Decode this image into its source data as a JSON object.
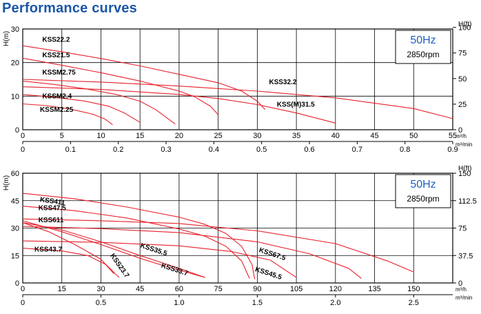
{
  "page": {
    "title": "Performance curves"
  },
  "colors": {
    "curve": "#e8202a",
    "frame": "#000000",
    "grid": "#000000",
    "hz_text": "#1f5fbf",
    "title": "#1a56a8"
  },
  "chart_data": [
    {
      "type": "line",
      "title": "Performance curves",
      "frequency_label": "50Hz",
      "speed_label": "2850rpm",
      "ylabel": "H(m)",
      "ylabel_right": "H(ft)",
      "xlabel_top_unit": [
        "m³/h",
        "m³/min"
      ],
      "grid": true,
      "xlim_m3h": [
        0,
        55
      ],
      "ylim_m": [
        0,
        30
      ],
      "x_ticks_m3h": [
        "0",
        "5",
        "10",
        "15",
        "20",
        "25",
        "30",
        "35",
        "40",
        "45",
        "50",
        "55"
      ],
      "x_ticks_m3min": [
        "0",
        "0.1",
        "0.2",
        "0.3",
        "0.4",
        "0.5",
        "0.6",
        "0.7",
        "0.8",
        "0.9"
      ],
      "x_ticks_m3min_values": [
        0,
        0.1,
        0.2,
        0.3,
        0.4,
        0.5,
        0.6,
        0.7,
        0.8,
        0.9
      ],
      "y_ticks_m": [
        "0",
        "10",
        "20",
        "30"
      ],
      "y_ticks_ft": [
        "0",
        "25",
        "50",
        "75",
        "100"
      ],
      "y_ticks_ft_values": [
        0,
        25,
        50,
        75,
        100
      ],
      "series": [
        {
          "name": "KSS22.2",
          "x": [
            0,
            5,
            10,
            15,
            20,
            25,
            28,
            30,
            31
          ],
          "y": [
            25,
            23.2,
            21.2,
            19,
            16.5,
            14,
            11.5,
            8.5,
            6
          ],
          "label_at": [
            2.5,
            26.2
          ]
        },
        {
          "name": "KSS21.5",
          "x": [
            0,
            5,
            10,
            15,
            20,
            22,
            24,
            25
          ],
          "y": [
            21.3,
            19.2,
            17,
            14.5,
            11.5,
            9.8,
            7,
            4.5
          ],
          "label_at": [
            2.5,
            21.6
          ]
        },
        {
          "name": "KSS32.2",
          "x": [
            0,
            10,
            20,
            30,
            40,
            50,
            55
          ],
          "y": [
            15,
            14.2,
            13,
            11.5,
            9.5,
            6.3,
            3.3
          ],
          "label_at": [
            31.5,
            13.6
          ]
        },
        {
          "name": "KSSM2.75",
          "x": [
            0,
            4,
            8,
            12,
            15,
            17,
            19.5
          ],
          "y": [
            14.5,
            13.5,
            12.2,
            10.5,
            8.5,
            6,
            1.7
          ],
          "label_at": [
            2.5,
            16.4
          ]
        },
        {
          "name": "KSS(M)31.5",
          "x": [
            0,
            10,
            20,
            25,
            30,
            35,
            40
          ],
          "y": [
            12.8,
            12,
            10.5,
            9.3,
            7.5,
            5,
            2
          ],
          "label_at": [
            32.5,
            6.9
          ]
        },
        {
          "name": "KSSM2.4",
          "x": [
            0,
            4,
            8,
            11,
            13,
            15
          ],
          "y": [
            10.5,
            9.7,
            8.5,
            7,
            5,
            2.2
          ],
          "label_at": [
            2.5,
            9.3
          ]
        },
        {
          "name": "KSSM2.25",
          "x": [
            0,
            3,
            6,
            9,
            10.5,
            11.5
          ],
          "y": [
            7.7,
            7.2,
            6.2,
            4.6,
            3.2,
            1.5
          ],
          "label_at": [
            2.2,
            5.3
          ]
        }
      ]
    },
    {
      "type": "line",
      "title": "Performance curves",
      "frequency_label": "50Hz",
      "speed_label": "2850rpm",
      "ylabel": "H(m)",
      "ylabel_right": "H(ft)",
      "xlabel_top_unit": [
        "m³/h",
        "m³/min"
      ],
      "grid": true,
      "xlim_m3h": [
        0,
        165
      ],
      "ylim_m": [
        0,
        60
      ],
      "x_ticks_m3h": [
        "0",
        "15",
        "30",
        "45",
        "60",
        "75",
        "90",
        "105",
        "120",
        "135",
        "150"
      ],
      "x_ticks_m3min": [
        "0",
        "0.5",
        "1.0",
        "1.5",
        "2.0",
        "2.5"
      ],
      "x_ticks_m3min_values": [
        0,
        0.5,
        1.0,
        1.5,
        2.0,
        2.5
      ],
      "y_ticks_m": [
        "0",
        "15",
        "30",
        "45",
        "60"
      ],
      "y_ticks_ft": [
        "0",
        "37.5",
        "75",
        "112.5",
        "150"
      ],
      "y_ticks_ft_values": [
        0,
        37.5,
        75,
        112.5,
        150
      ],
      "series": [
        {
          "name": "KSS411",
          "x": [
            0,
            20,
            40,
            60,
            70,
            78,
            84,
            88,
            89
          ],
          "y": [
            49,
            46,
            41.5,
            36,
            32,
            27,
            20,
            10,
            2
          ],
          "label_at": [
            6.5,
            44.5
          ]
        },
        {
          "name": "KSS47.5",
          "x": [
            0,
            20,
            40,
            60,
            70,
            78,
            84,
            87
          ],
          "y": [
            42,
            39.5,
            35.5,
            29.5,
            25.5,
            20,
            12,
            2.5
          ],
          "label_at": [
            6,
            39.8
          ]
        },
        {
          "name": "KSS611",
          "x": [
            0,
            30,
            60,
            90,
            120,
            140,
            150
          ],
          "y": [
            35,
            34,
            32.5,
            28.5,
            21.5,
            12,
            6
          ],
          "label_at": [
            6,
            33.2
          ]
        },
        {
          "name": "KSS67.5",
          "x": [
            0,
            30,
            60,
            90,
            110,
            125,
            130
          ],
          "y": [
            31,
            29.7,
            27.5,
            22.5,
            16,
            8,
            2.5
          ],
          "label_at": [
            90.5,
            17
          ]
        },
        {
          "name": "KSS45.5",
          "x": [
            0,
            30,
            60,
            80,
            95,
            105
          ],
          "y": [
            23,
            22.2,
            20.3,
            17.2,
            12.5,
            3
          ],
          "label_at": [
            89,
            6.5
          ]
        },
        {
          "name": "KSS43.7",
          "x": [
            0,
            15,
            25,
            32,
            37
          ],
          "y": [
            19,
            17.5,
            15,
            10,
            3
          ],
          "label_at": [
            4.5,
            17.2
          ]
        },
        {
          "name": "KSS35.5",
          "x": [
            0,
            15,
            30,
            45,
            60,
            70
          ],
          "y": [
            33,
            29,
            22.5,
            15,
            8,
            3
          ],
          "label_at": [
            45,
            19.5
          ]
        },
        {
          "name": "KSS33.7",
          "x": [
            0,
            15,
            30,
            45,
            55,
            70
          ],
          "y": [
            34,
            28,
            21,
            13.5,
            9,
            3
          ],
          "label_at": [
            53,
            8.6
          ]
        },
        {
          "name": "KSS23.7",
          "x": [
            0,
            10,
            20,
            30,
            35
          ],
          "y": [
            33,
            28,
            21,
            13,
            5
          ],
          "label_at": [
            33.5,
            15
          ]
        }
      ]
    }
  ]
}
